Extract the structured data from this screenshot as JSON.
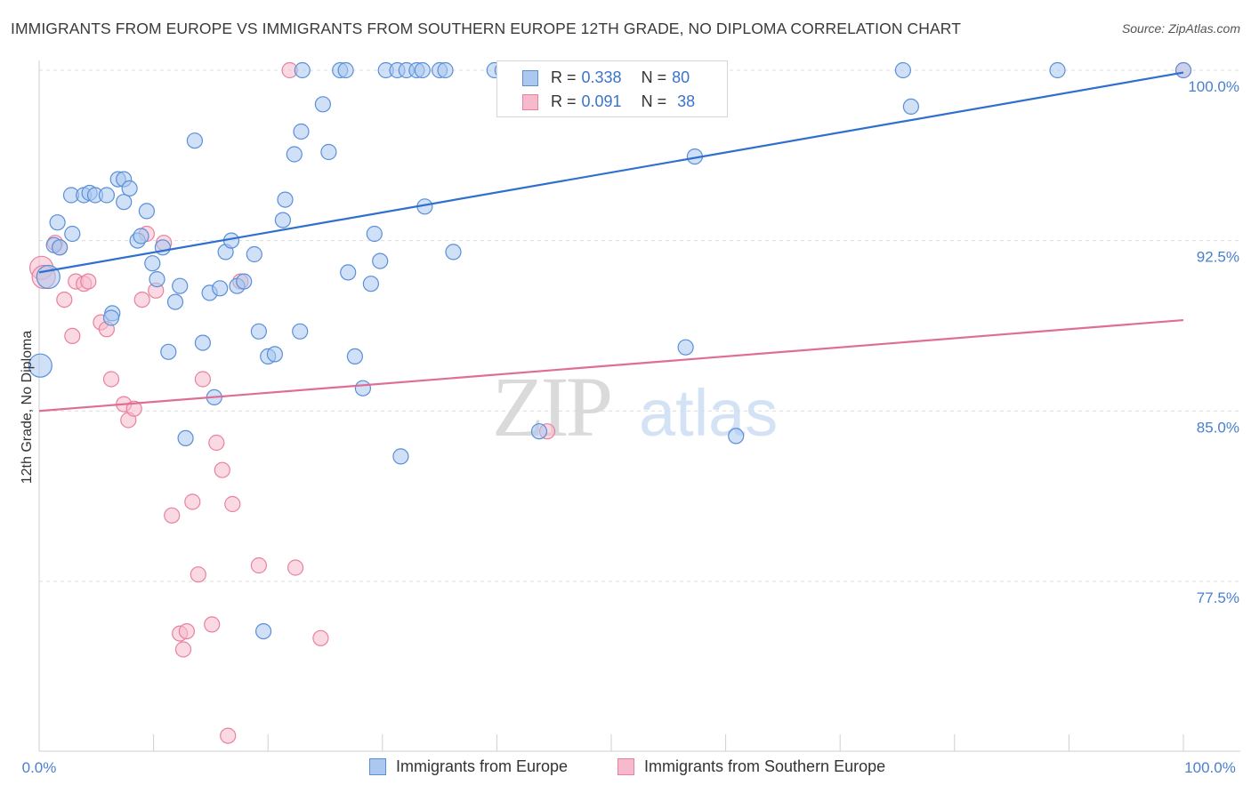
{
  "title": "IMMIGRANTS FROM EUROPE VS IMMIGRANTS FROM SOUTHERN EUROPE 12TH GRADE, NO DIPLOMA CORRELATION CHART",
  "source": "Source: ZipAtlas.com",
  "watermark": {
    "zip": "ZIP",
    "atlas": "atlas"
  },
  "colors": {
    "blue_fill": "#aac8f0",
    "blue_stroke": "#5a8fd8",
    "blue_line": "#2f6fcf",
    "pink_fill": "#f7b9cc",
    "pink_stroke": "#e8819f",
    "pink_line": "#e06d96",
    "tick": "#4a7fd0",
    "grid": "#dcdcdc"
  },
  "legend": {
    "rows": [
      {
        "r_label": "R =",
        "r_value": "0.338",
        "n_label": "N =",
        "n_value": "80"
      },
      {
        "r_label": "R =",
        "r_value": "0.091",
        "n_label": "N =",
        "n_value": "38"
      }
    ]
  },
  "chart_data": {
    "type": "scatter",
    "xlabel": "",
    "ylabel": "12th Grade, No Diploma",
    "x_tick_labels": [
      "0.0%",
      "100.0%"
    ],
    "y_tick_labels": [
      "100.0%",
      "92.5%",
      "85.0%",
      "77.5%"
    ],
    "y_ticks": [
      100.0,
      92.5,
      85.0,
      77.5
    ],
    "xlim": [
      0,
      100
    ],
    "ylim": [
      70.5,
      101.2
    ],
    "grid": "horizontal dashed",
    "legend_placement": "bottom",
    "series": [
      {
        "name": "Immigrants from Europe",
        "color": "blue",
        "trend": [
          [
            0,
            91.1
          ],
          [
            100,
            99.9
          ]
        ],
        "points": [
          [
            0.1,
            87.0
          ],
          [
            0.8,
            90.9
          ],
          [
            1.3,
            92.3
          ],
          [
            1.8,
            92.2
          ],
          [
            1.6,
            93.3
          ],
          [
            2.9,
            92.8
          ],
          [
            2.8,
            94.5
          ],
          [
            3.9,
            94.5
          ],
          [
            4.4,
            94.6
          ],
          [
            4.9,
            94.5
          ],
          [
            5.9,
            94.5
          ],
          [
            6.4,
            89.3
          ],
          [
            6.3,
            89.1
          ],
          [
            6.9,
            95.2
          ],
          [
            7.4,
            95.2
          ],
          [
            7.4,
            94.2
          ],
          [
            7.9,
            94.8
          ],
          [
            8.6,
            92.5
          ],
          [
            8.9,
            92.7
          ],
          [
            9.4,
            93.8
          ],
          [
            9.9,
            91.5
          ],
          [
            10.3,
            90.8
          ],
          [
            10.8,
            92.2
          ],
          [
            11.3,
            87.6
          ],
          [
            11.9,
            89.8
          ],
          [
            12.3,
            90.5
          ],
          [
            12.8,
            83.8
          ],
          [
            13.6,
            96.9
          ],
          [
            14.3,
            88.0
          ],
          [
            14.9,
            90.2
          ],
          [
            15.3,
            85.6
          ],
          [
            15.8,
            90.4
          ],
          [
            16.3,
            92.0
          ],
          [
            16.8,
            92.5
          ],
          [
            17.3,
            90.5
          ],
          [
            17.9,
            90.7
          ],
          [
            18.8,
            91.9
          ],
          [
            19.2,
            88.5
          ],
          [
            19.6,
            75.3
          ],
          [
            20.0,
            87.4
          ],
          [
            20.6,
            87.5
          ],
          [
            21.3,
            93.4
          ],
          [
            21.5,
            94.3
          ],
          [
            22.3,
            96.3
          ],
          [
            22.8,
            88.5
          ],
          [
            22.9,
            97.3
          ],
          [
            23.0,
            100.0
          ],
          [
            24.8,
            98.5
          ],
          [
            25.3,
            96.4
          ],
          [
            26.3,
            100.0
          ],
          [
            26.8,
            100.0
          ],
          [
            27.0,
            91.1
          ],
          [
            27.6,
            87.4
          ],
          [
            28.3,
            86.0
          ],
          [
            29.0,
            90.6
          ],
          [
            29.3,
            92.8
          ],
          [
            29.8,
            91.6
          ],
          [
            30.3,
            100.0
          ],
          [
            31.3,
            100.0
          ],
          [
            31.6,
            83.0
          ],
          [
            32.1,
            100.0
          ],
          [
            33.0,
            100.0
          ],
          [
            33.5,
            100.0
          ],
          [
            33.7,
            94.0
          ],
          [
            35.0,
            100.0
          ],
          [
            35.5,
            100.0
          ],
          [
            36.2,
            92.0
          ],
          [
            39.8,
            100.0
          ],
          [
            40.5,
            100.0
          ],
          [
            41.0,
            100.0
          ],
          [
            43.7,
            84.1
          ],
          [
            47.8,
            100.0
          ],
          [
            48.5,
            100.0
          ],
          [
            56.5,
            87.8
          ],
          [
            57.3,
            96.2
          ],
          [
            60.9,
            83.9
          ],
          [
            75.5,
            100.0
          ],
          [
            76.2,
            98.4
          ],
          [
            89.0,
            100.0
          ],
          [
            100.0,
            100.0
          ]
        ]
      },
      {
        "name": "Immigrants from Southern Europe",
        "color": "pink",
        "trend": [
          [
            0,
            85.0
          ],
          [
            100,
            89.0
          ]
        ],
        "points": [
          [
            0.2,
            91.3
          ],
          [
            0.4,
            90.9
          ],
          [
            1.4,
            92.4
          ],
          [
            1.8,
            92.2
          ],
          [
            2.2,
            89.9
          ],
          [
            2.9,
            88.3
          ],
          [
            3.2,
            90.7
          ],
          [
            3.9,
            90.6
          ],
          [
            4.3,
            90.7
          ],
          [
            5.4,
            88.9
          ],
          [
            5.9,
            88.6
          ],
          [
            6.3,
            86.4
          ],
          [
            7.4,
            85.3
          ],
          [
            7.8,
            84.6
          ],
          [
            8.3,
            85.1
          ],
          [
            9.0,
            89.9
          ],
          [
            9.4,
            92.8
          ],
          [
            10.2,
            90.3
          ],
          [
            10.9,
            92.4
          ],
          [
            11.6,
            80.4
          ],
          [
            12.3,
            75.2
          ],
          [
            12.6,
            74.5
          ],
          [
            12.9,
            75.3
          ],
          [
            13.4,
            81.0
          ],
          [
            13.9,
            77.8
          ],
          [
            14.3,
            86.4
          ],
          [
            15.1,
            75.6
          ],
          [
            15.5,
            83.6
          ],
          [
            16.0,
            82.4
          ],
          [
            16.5,
            70.7
          ],
          [
            16.9,
            80.9
          ],
          [
            17.6,
            90.7
          ],
          [
            19.2,
            78.2
          ],
          [
            21.9,
            100.0
          ],
          [
            22.4,
            78.1
          ],
          [
            24.6,
            75.0
          ],
          [
            44.4,
            84.1
          ],
          [
            100.0,
            100.0
          ]
        ]
      }
    ]
  }
}
